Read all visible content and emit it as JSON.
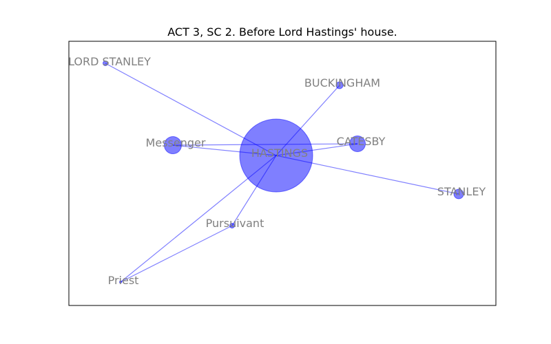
{
  "figure": {
    "title": "ACT 3, SC 2. Before Lord Hastings' house."
  },
  "graph": {
    "node_color": "#0000ff",
    "edge_color": "#0000ff",
    "label_color": "#808080",
    "nodes": [
      {
        "id": "hastings",
        "label": "HASTINGS",
        "degree": 7
      },
      {
        "id": "lord-stanley",
        "label": "LORD STANLEY",
        "degree": 1
      },
      {
        "id": "buckingham",
        "label": "BUCKINGHAM",
        "degree": 1
      },
      {
        "id": "messenger",
        "label": "Messenger",
        "degree": 2
      },
      {
        "id": "catesby",
        "label": "CATESBY",
        "degree": 2
      },
      {
        "id": "stanley",
        "label": "STANLEY",
        "degree": 1
      },
      {
        "id": "pursuivant",
        "label": "Pursuivant",
        "degree": 2
      },
      {
        "id": "priest",
        "label": "Priest",
        "degree": 2
      }
    ],
    "edges": [
      [
        "hastings",
        "lord-stanley"
      ],
      [
        "hastings",
        "buckingham"
      ],
      [
        "hastings",
        "messenger"
      ],
      [
        "hastings",
        "catesby"
      ],
      [
        "hastings",
        "stanley"
      ],
      [
        "hastings",
        "pursuivant"
      ],
      [
        "hastings",
        "priest"
      ],
      [
        "messenger",
        "catesby"
      ],
      [
        "pursuivant",
        "priest"
      ]
    ]
  }
}
